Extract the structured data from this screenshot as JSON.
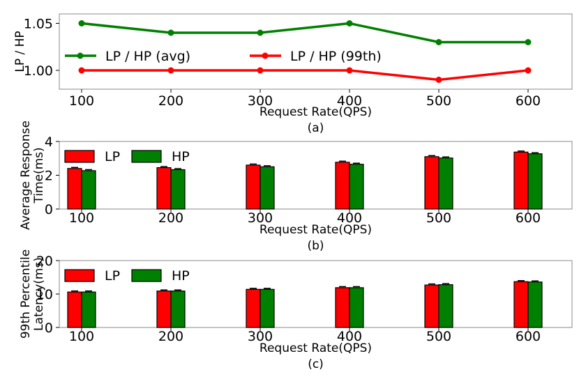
{
  "colors": {
    "red": "#ff0000",
    "green": "#008000",
    "axis": "#888888"
  },
  "chart_data": [
    {
      "type": "line",
      "x": [
        100,
        200,
        300,
        400,
        500,
        600
      ],
      "xlabel": "Request Rate(QPS)",
      "ylabel": "LP / HP",
      "subtitle": "(a)",
      "ylim": [
        0.98,
        1.06
      ],
      "yticks": [
        "1.00",
        "1.05"
      ],
      "series": [
        {
          "name": "LP / HP (avg)",
          "color": "#008000",
          "values": [
            1.05,
            1.04,
            1.04,
            1.05,
            1.03,
            1.03
          ]
        },
        {
          "name": "LP / HP (99th)",
          "color": "#ff0000",
          "values": [
            1.0,
            1.0,
            1.0,
            1.0,
            0.99,
            1.0
          ]
        }
      ]
    },
    {
      "type": "bar",
      "categories": [
        "100",
        "200",
        "300",
        "400",
        "500",
        "600"
      ],
      "xlabel": "Request Rate(QPS)",
      "ylabel": [
        "Average Response",
        "Time(ms)"
      ],
      "subtitle": "(b)",
      "ylim": [
        0,
        4
      ],
      "yticks": [
        "0",
        "2",
        "4"
      ],
      "series": [
        {
          "name": "LP",
          "color": "#ff0000",
          "values": [
            2.4,
            2.45,
            2.6,
            2.77,
            3.1,
            3.37
          ]
        },
        {
          "name": "HP",
          "color": "#008000",
          "values": [
            2.27,
            2.33,
            2.5,
            2.65,
            3.02,
            3.27
          ]
        }
      ]
    },
    {
      "type": "bar",
      "categories": [
        "100",
        "200",
        "300",
        "400",
        "500",
        "600"
      ],
      "xlabel": "Request Rate(QPS)",
      "ylabel": [
        "99th Percentile",
        "Latency(ms)"
      ],
      "subtitle": "(c)",
      "ylim": [
        0,
        20
      ],
      "yticks": [
        "0",
        "10",
        "20"
      ],
      "series": [
        {
          "name": "LP",
          "color": "#ff0000",
          "values": [
            10.6,
            10.9,
            11.4,
            11.9,
            12.7,
            13.7
          ]
        },
        {
          "name": "HP",
          "color": "#008000",
          "values": [
            10.6,
            10.9,
            11.4,
            11.9,
            12.8,
            13.6
          ]
        }
      ]
    }
  ]
}
